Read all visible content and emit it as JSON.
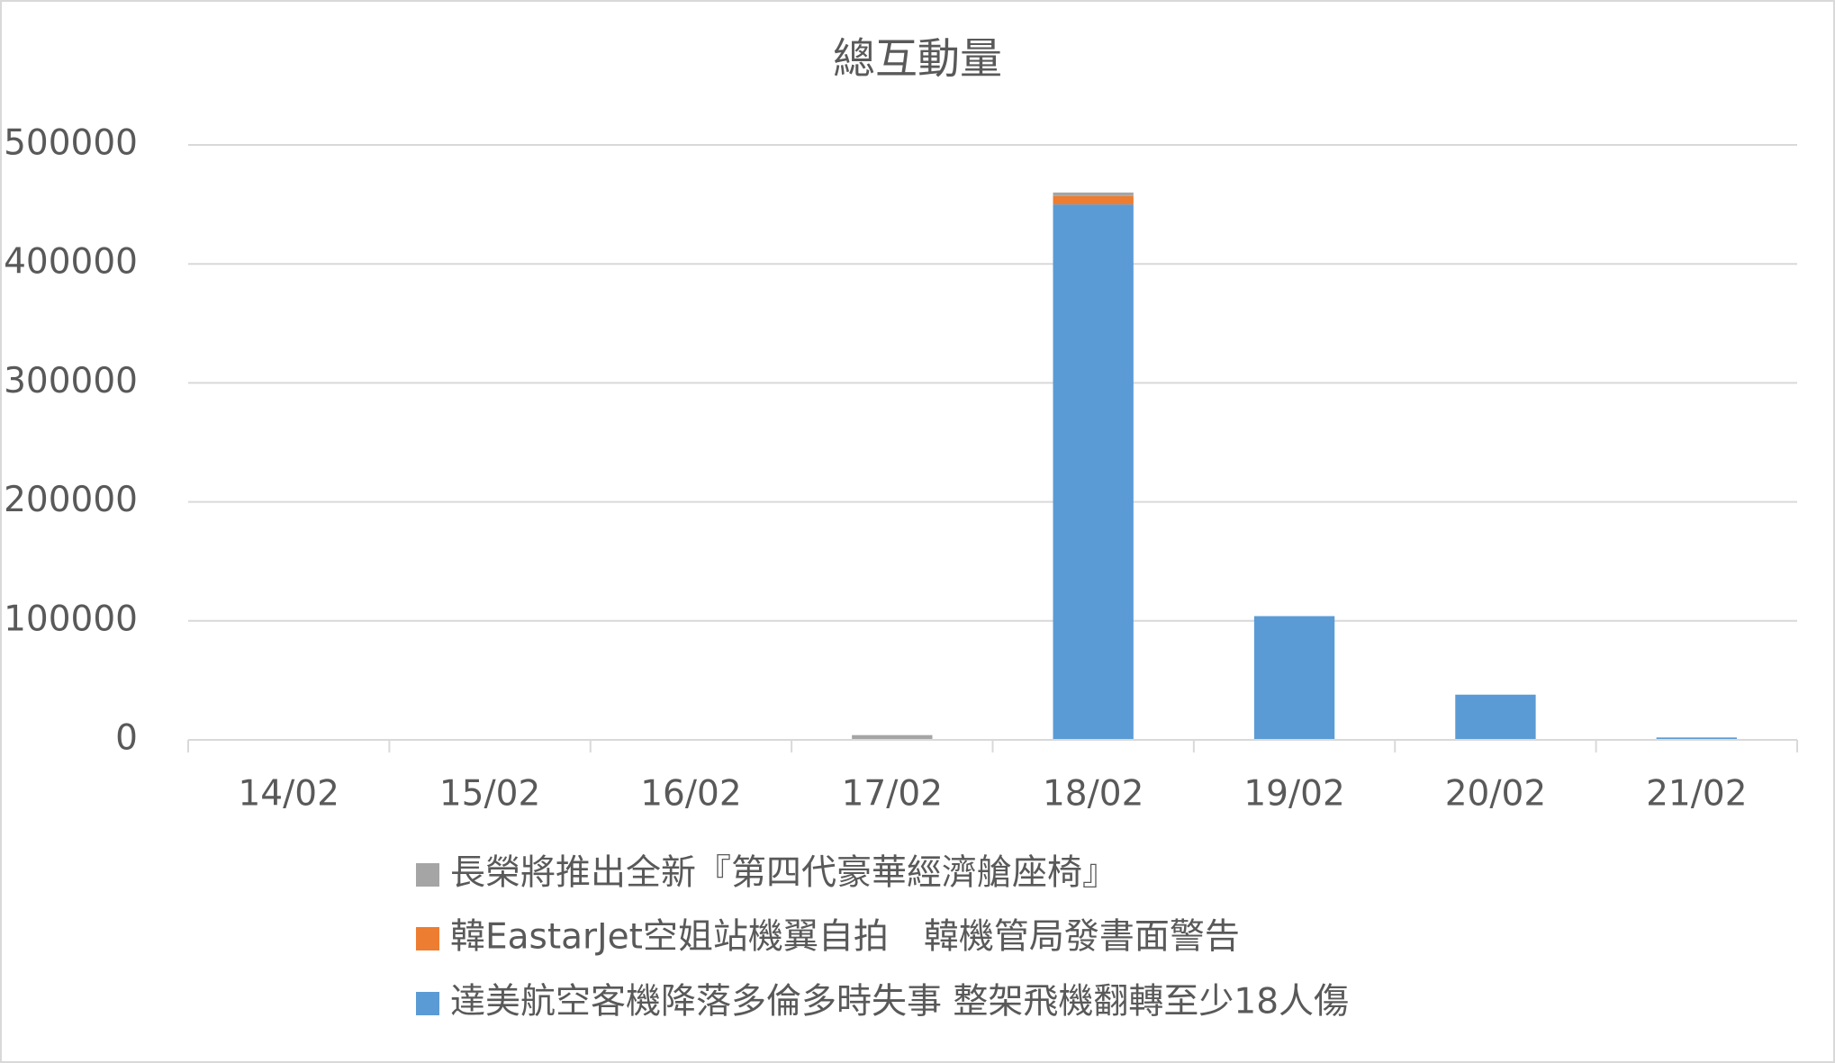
{
  "chart_data": {
    "type": "bar",
    "stacked": true,
    "title": "總互動量",
    "categories": [
      "14/02",
      "15/02",
      "16/02",
      "17/02",
      "18/02",
      "19/02",
      "20/02",
      "21/02"
    ],
    "series": [
      {
        "name": "達美航空客機降落多倫多時失事 整架飛機翻轉至少18人傷",
        "color": "#5b9bd5",
        "values": [
          0,
          0,
          0,
          0,
          450000,
          104000,
          38000,
          2000
        ]
      },
      {
        "name": "韓EastarJet空姐站機翼自拍　韓機管局發書面警告",
        "color": "#ed7d31",
        "values": [
          0,
          0,
          0,
          0,
          7000,
          0,
          0,
          0
        ]
      },
      {
        "name": "長榮將推出全新『第四代豪華經濟艙座椅』",
        "color": "#a5a5a5",
        "values": [
          0,
          0,
          0,
          4000,
          3000,
          0,
          0,
          0
        ]
      }
    ],
    "ylim": [
      0,
      500000
    ],
    "yticks": [
      0,
      100000,
      200000,
      300000,
      400000,
      500000
    ],
    "grid": true
  }
}
